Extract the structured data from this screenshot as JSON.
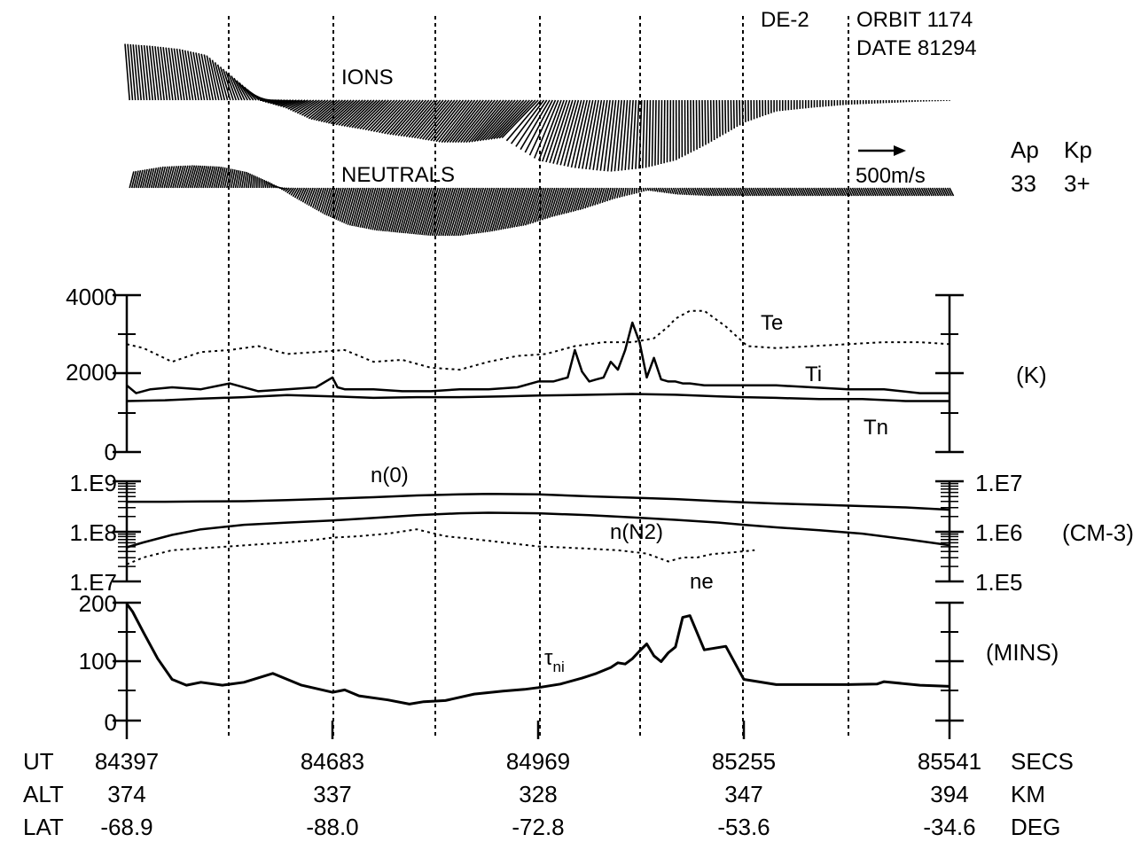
{
  "chart_data": [
    {
      "type": "line",
      "panel": "vectors",
      "header": {
        "satellite": "DE-2",
        "orbit": "ORBIT 1174",
        "date": "DATE 81294"
      },
      "ions_label": "IONS",
      "neutrals_label": "NEUTRALS",
      "scale_label": "500m/s",
      "indices": {
        "ap_label": "Ap",
        "kp_label": "Kp",
        "ap": "33",
        "kp": "3+"
      },
      "ions": {
        "x": [
          84397,
          84440,
          84480,
          84520,
          84560,
          84600,
          84640,
          84683,
          84720,
          84760,
          84800,
          84840,
          84880,
          84920,
          84969,
          85000,
          85040,
          85080,
          85120,
          85160,
          85200,
          85255,
          85300,
          85350,
          85400,
          85450,
          85500,
          85541
        ],
        "east": [
          -60,
          -80,
          -100,
          -120,
          -140,
          -180,
          -220,
          -300,
          -350,
          -380,
          -400,
          -420,
          -440,
          -460,
          -480,
          -300,
          -200,
          -100,
          -20,
          0,
          10,
          5,
          0,
          0,
          0,
          0,
          0,
          0
        ],
        "north": [
          750,
          720,
          680,
          600,
          300,
          0,
          -100,
          -250,
          -320,
          -380,
          -450,
          -500,
          -560,
          -560,
          -500,
          -800,
          -900,
          -950,
          -900,
          -800,
          -600,
          -300,
          -150,
          -100,
          -60,
          -40,
          -20,
          -10
        ]
      },
      "neutrals": {
        "x": [
          84397,
          84440,
          84480,
          84520,
          84560,
          84600,
          84640,
          84683,
          84720,
          84760,
          84800,
          84840,
          84880,
          84920,
          84969,
          85000,
          85040,
          85080,
          85120,
          85160,
          85200,
          85255,
          85300,
          85350,
          85400,
          85450,
          85500,
          85541
        ],
        "east": [
          30,
          40,
          50,
          40,
          20,
          -20,
          -40,
          -60,
          -80,
          -90,
          -100,
          -110,
          -110,
          -100,
          -90,
          -70,
          -50,
          -20,
          10,
          20,
          30,
          30,
          30,
          30,
          30,
          30,
          30,
          30
        ],
        "north": [
          120,
          160,
          170,
          160,
          120,
          40,
          -80,
          -200,
          -280,
          -320,
          -340,
          -360,
          -360,
          -330,
          -280,
          -220,
          -160,
          -80,
          -20,
          -50,
          -60,
          -60,
          -60,
          -60,
          -60,
          -60,
          -60,
          -60
        ]
      }
    },
    {
      "type": "line",
      "panel": "temperature",
      "ylabel": "(K)",
      "ylim": [
        0,
        4000
      ],
      "yticks": [
        "4000",
        "2000",
        "0"
      ],
      "series": [
        {
          "name": "Te",
          "style": "dotted",
          "x": [
            84397,
            84420,
            84460,
            84500,
            84540,
            84580,
            84620,
            84660,
            84700,
            84740,
            84780,
            84820,
            84860,
            84900,
            84940,
            84980,
            85020,
            85060,
            85100,
            85130,
            85150,
            85160,
            85170,
            85180,
            85200,
            85230,
            85260,
            85300,
            85350,
            85400,
            85450,
            85500,
            85541
          ],
          "values": [
            2750,
            2650,
            2300,
            2550,
            2600,
            2700,
            2500,
            2550,
            2600,
            2300,
            2350,
            2150,
            2100,
            2300,
            2450,
            2500,
            2700,
            2800,
            2800,
            2900,
            3200,
            3400,
            3500,
            3600,
            3600,
            3200,
            2700,
            2650,
            2700,
            2750,
            2800,
            2800,
            2750
          ]
        },
        {
          "name": "Ti",
          "style": "solid",
          "x": [
            84397,
            84410,
            84430,
            84460,
            84500,
            84540,
            84580,
            84620,
            84660,
            84683,
            84690,
            84700,
            84740,
            84780,
            84820,
            84860,
            84900,
            84940,
            84969,
            84990,
            85010,
            85020,
            85030,
            85040,
            85050,
            85060,
            85070,
            85080,
            85090,
            85100,
            85110,
            85120,
            85130,
            85140,
            85150,
            85160,
            85170,
            85180,
            85200,
            85230,
            85260,
            85300,
            85350,
            85400,
            85450,
            85500,
            85541
          ],
          "values": [
            1700,
            1500,
            1600,
            1650,
            1600,
            1750,
            1550,
            1600,
            1650,
            1900,
            1650,
            1600,
            1600,
            1550,
            1550,
            1600,
            1600,
            1650,
            1800,
            1800,
            1900,
            2600,
            2050,
            1800,
            1850,
            1900,
            2300,
            2100,
            2600,
            3300,
            2800,
            1900,
            2400,
            1850,
            1800,
            1800,
            1750,
            1750,
            1700,
            1700,
            1700,
            1700,
            1650,
            1600,
            1600,
            1500,
            1500
          ]
        },
        {
          "name": "Tn",
          "style": "solid",
          "x": [
            84397,
            84450,
            84500,
            84560,
            84620,
            84683,
            84740,
            84800,
            84860,
            84920,
            84969,
            85040,
            85100,
            85160,
            85220,
            85255,
            85300,
            85360,
            85420,
            85480,
            85541
          ],
          "values": [
            1300,
            1320,
            1360,
            1400,
            1450,
            1420,
            1380,
            1400,
            1400,
            1420,
            1440,
            1460,
            1480,
            1460,
            1420,
            1400,
            1380,
            1350,
            1350,
            1300,
            1300
          ]
        }
      ]
    },
    {
      "type": "line",
      "panel": "density",
      "ylabel": "(CM-3)",
      "yscale": "log",
      "ylim": [
        "1.E7",
        "1.E9"
      ],
      "yticks_left": [
        "1.E9",
        "1.E8",
        "1.E7"
      ],
      "yticks_right": [
        "1.E7",
        "1.E6",
        "1.E5"
      ],
      "series": [
        {
          "name": "n(0)",
          "axis": "left",
          "x": [
            84397,
            84450,
            84500,
            84560,
            84620,
            84683,
            84740,
            84800,
            84860,
            84900,
            84969,
            85040,
            85100,
            85160,
            85220,
            85255,
            85300,
            85360,
            85420,
            85480,
            85541
          ],
          "values": [
            390000000.0,
            390000000.0,
            395000000.0,
            400000000.0,
            420000000.0,
            450000000.0,
            480000000.0,
            520000000.0,
            550000000.0,
            560000000.0,
            550000000.0,
            500000000.0,
            470000000.0,
            440000000.0,
            400000000.0,
            380000000.0,
            360000000.0,
            340000000.0,
            320000000.0,
            300000000.0,
            270000000.0
          ]
        },
        {
          "name": "n(N2)",
          "axis": "right",
          "x": [
            84397,
            84420,
            84460,
            84500,
            84560,
            84620,
            84683,
            84740,
            84800,
            84860,
            84900,
            84969,
            85040,
            85100,
            85160,
            85220,
            85255,
            85300,
            85360,
            85420,
            85480,
            85541
          ],
          "values": [
            480000.0,
            600000.0,
            850000.0,
            1100000.0,
            1350000.0,
            1500000.0,
            1650000.0,
            1850000.0,
            2100000.0,
            2300000.0,
            2350000.0,
            2300000.0,
            2100000.0,
            1900000.0,
            1700000.0,
            1500000.0,
            1350000.0,
            1200000.0,
            1050000.0,
            900000.0,
            700000.0,
            530000.0
          ]
        },
        {
          "name": "ne",
          "axis": "left",
          "style": "dotted",
          "x": [
            84397,
            84420,
            84460,
            84500,
            84540,
            84580,
            84620,
            84660,
            84683,
            84720,
            84760,
            84800,
            84840,
            84880,
            84920,
            84969,
            85000,
            85040,
            85080,
            85120,
            85150,
            85170,
            85190,
            85210,
            85240,
            85255,
            85270
          ],
          "values": [
            22000000.0,
            30000000.0,
            42000000.0,
            46000000.0,
            50000000.0,
            55000000.0,
            60000000.0,
            68000000.0,
            75000000.0,
            80000000.0,
            90000000.0,
            110000000.0,
            80000000.0,
            70000000.0,
            60000000.0,
            50000000.0,
            48000000.0,
            45000000.0,
            42000000.0,
            36000000.0,
            25000000.0,
            30000000.0,
            30000000.0,
            35000000.0,
            38000000.0,
            40000000.0,
            42000000.0
          ]
        }
      ]
    },
    {
      "type": "line",
      "panel": "time-constant",
      "ylabel": "(MINS)",
      "ylim": [
        0,
        200
      ],
      "yticks": [
        "200",
        "100",
        "0"
      ],
      "series": [
        {
          "name": "τni",
          "name_main": "τ",
          "name_sub": "ni",
          "x": [
            84397,
            84405,
            84420,
            84440,
            84460,
            84480,
            84500,
            84530,
            84560,
            84600,
            84640,
            84683,
            84700,
            84720,
            84760,
            84790,
            84810,
            84840,
            84880,
            84920,
            84950,
            84969,
            85000,
            85030,
            85050,
            85070,
            85080,
            85090,
            85100,
            85110,
            85120,
            85130,
            85140,
            85150,
            85160,
            85170,
            85180,
            85200,
            85230,
            85255,
            85300,
            85350,
            85400,
            85440,
            85450,
            85500,
            85541
          ],
          "values": [
            198,
            185,
            150,
            105,
            70,
            60,
            65,
            60,
            65,
            80,
            60,
            48,
            52,
            42,
            35,
            28,
            32,
            34,
            45,
            50,
            53,
            56,
            62,
            72,
            80,
            90,
            98,
            96,
            105,
            118,
            130,
            110,
            100,
            115,
            125,
            175,
            178,
            120,
            126,
            70,
            61,
            61,
            61,
            62,
            66,
            60,
            58
          ]
        }
      ]
    }
  ],
  "x_axis": {
    "ticks": [
      84397,
      84683,
      84969,
      85255,
      85541
    ],
    "rows": [
      {
        "label": "UT",
        "values": [
          "84397",
          "84683",
          "84969",
          "85255",
          "85541"
        ],
        "unit": "SECS"
      },
      {
        "label": "ALT",
        "values": [
          "374",
          "337",
          "328",
          "347",
          "394"
        ],
        "unit": "KM"
      },
      {
        "label": "LAT",
        "values": [
          "-68.9",
          "-88.0",
          "-72.8",
          "-53.6",
          "-34.6"
        ],
        "unit": "DEG"
      }
    ]
  }
}
